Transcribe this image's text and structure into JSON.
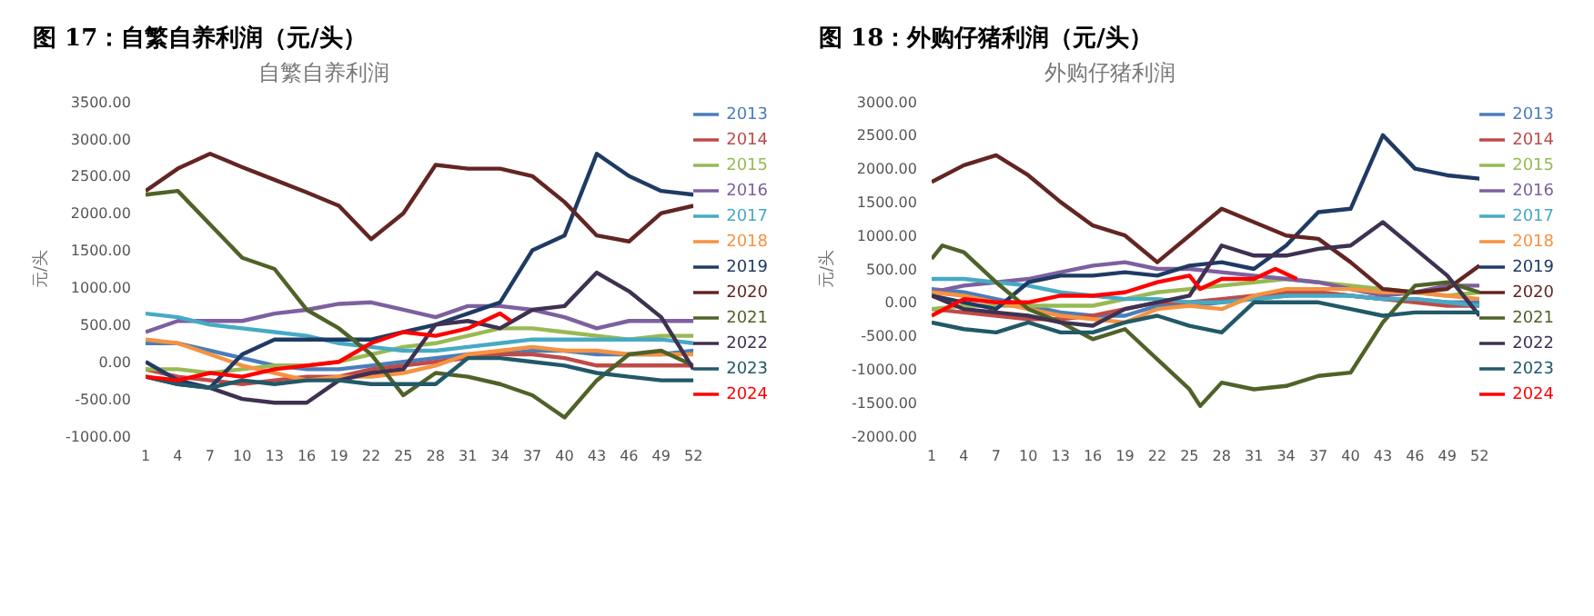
{
  "chart_data": [
    {
      "type": "line",
      "title": "图 17：自繁自养利润（元/头）",
      "subtitle": "自繁自养利润",
      "ylabel": "元/头",
      "legend": "right",
      "grid": false,
      "x": [
        1,
        4,
        7,
        10,
        13,
        16,
        19,
        22,
        25,
        28,
        31,
        34,
        37,
        40,
        43,
        46,
        49,
        52
      ],
      "xlim": [
        1,
        52
      ],
      "xticks": [
        1,
        4,
        7,
        10,
        13,
        16,
        19,
        22,
        25,
        28,
        31,
        34,
        37,
        40,
        43,
        46,
        49,
        52
      ],
      "ylim": [
        -1000,
        3500
      ],
      "yticks": [
        {
          "value": -1000,
          "label": "-1000.00"
        },
        {
          "value": -500,
          "label": "-500.00"
        },
        {
          "value": 0,
          "label": "0.00"
        },
        {
          "value": 500,
          "label": "500.00"
        },
        {
          "value": 1000,
          "label": "1000.00"
        },
        {
          "value": 1500,
          "label": "1500.00"
        },
        {
          "value": 2000,
          "label": "2000.00"
        },
        {
          "value": 2500,
          "label": "2500.00"
        },
        {
          "value": 3000,
          "label": "3000.00"
        },
        {
          "value": 3500,
          "label": "3500.00"
        }
      ],
      "series": [
        {
          "name": "2013",
          "color": "#4a7ebb",
          "values": [
            250,
            250,
            150,
            50,
            -50,
            -100,
            -100,
            -50,
            0,
            50,
            100,
            100,
            150,
            150,
            100,
            100,
            100,
            150
          ]
        },
        {
          "name": "2014",
          "color": "#be4b48",
          "values": [
            -100,
            -200,
            -250,
            -300,
            -250,
            -200,
            -200,
            -100,
            -50,
            0,
            50,
            100,
            100,
            50,
            -50,
            -50,
            -50,
            -50
          ]
        },
        {
          "name": "2015",
          "color": "#98b954",
          "values": [
            -100,
            -100,
            -150,
            -100,
            -50,
            -50,
            0,
            100,
            200,
            250,
            350,
            450,
            450,
            400,
            350,
            300,
            350,
            350
          ]
        },
        {
          "name": "2016",
          "color": "#7d60a0",
          "values": [
            400,
            550,
            550,
            550,
            650,
            700,
            780,
            800,
            700,
            600,
            750,
            750,
            700,
            600,
            450,
            550,
            550,
            550
          ]
        },
        {
          "name": "2017",
          "color": "#46aac5",
          "values": [
            650,
            600,
            500,
            450,
            400,
            350,
            250,
            200,
            150,
            150,
            200,
            250,
            300,
            300,
            300,
            300,
            300,
            250
          ]
        },
        {
          "name": "2018",
          "color": "#f69240",
          "values": [
            300,
            250,
            100,
            -50,
            -150,
            -250,
            -200,
            -200,
            -150,
            -50,
            100,
            150,
            200,
            150,
            150,
            100,
            100,
            100
          ]
        },
        {
          "name": "2019",
          "color": "#1f3b64",
          "values": [
            0,
            -250,
            -350,
            100,
            300,
            300,
            300,
            300,
            400,
            500,
            650,
            800,
            1500,
            1700,
            2800,
            2500,
            2300,
            2250
          ]
        },
        {
          "name": "2020",
          "color": "#632523",
          "values": [
            2300,
            2600,
            2800,
            2620,
            2450,
            2280,
            2100,
            1650,
            2000,
            2650,
            2600,
            2600,
            2500,
            2150,
            1700,
            1620,
            2000,
            2100
          ]
        },
        {
          "name": "2021",
          "color": "#4f6228",
          "values": [
            2250,
            2300,
            1850,
            1400,
            1250,
            700,
            450,
            100,
            -450,
            -150,
            -200,
            -300,
            -450,
            -750,
            -250,
            100,
            150,
            -50
          ]
        },
        {
          "name": "2022",
          "color": "#3f3151",
          "values": [
            -200,
            -300,
            -350,
            -500,
            -550,
            -550,
            -250,
            -150,
            -100,
            500,
            550,
            450,
            700,
            750,
            1200,
            950,
            600,
            -100
          ]
        },
        {
          "name": "2023",
          "color": "#215968",
          "values": [
            -200,
            -300,
            -350,
            -250,
            -300,
            -250,
            -250,
            -300,
            -300,
            -300,
            50,
            50,
            0,
            -50,
            -150,
            -200,
            -250,
            -250
          ]
        },
        {
          "name": "2024",
          "color": "#ff0000",
          "x": [
            1,
            4,
            7,
            10,
            13,
            16,
            19,
            22,
            25,
            28,
            31,
            34,
            35
          ],
          "values": [
            -200,
            -250,
            -150,
            -200,
            -100,
            -50,
            0,
            250,
            400,
            350,
            450,
            650,
            550
          ]
        }
      ]
    },
    {
      "type": "line",
      "title": "图 18：外购仔猪利润（元/头）",
      "subtitle": "外购仔猪利润",
      "ylabel": "元/头",
      "legend": "right",
      "grid": false,
      "x": [
        1,
        4,
        7,
        10,
        13,
        16,
        19,
        22,
        25,
        28,
        31,
        34,
        37,
        40,
        43,
        46,
        49,
        52
      ],
      "xlim": [
        1,
        52
      ],
      "xticks": [
        1,
        4,
        7,
        10,
        13,
        16,
        19,
        22,
        25,
        28,
        31,
        34,
        37,
        40,
        43,
        46,
        49,
        52
      ],
      "ylim": [
        -2000,
        3000
      ],
      "yticks": [
        {
          "value": -2000,
          "label": "-2000.00"
        },
        {
          "value": -1500,
          "label": "-1500.00"
        },
        {
          "value": -1000,
          "label": "-1000.00"
        },
        {
          "value": -500,
          "label": "-500.00"
        },
        {
          "value": 0,
          "label": "0.00"
        },
        {
          "value": 500,
          "label": "500.00"
        },
        {
          "value": 1000,
          "label": "1000.00"
        },
        {
          "value": 1500,
          "label": "1500.00"
        },
        {
          "value": 2000,
          "label": "2000.00"
        },
        {
          "value": 2500,
          "label": "2500.00"
        },
        {
          "value": 3000,
          "label": "3000.00"
        }
      ],
      "series": [
        {
          "name": "2013",
          "color": "#4a7ebb",
          "values": [
            200,
            150,
            50,
            -50,
            -150,
            -200,
            -200,
            -50,
            -50,
            0,
            50,
            100,
            150,
            100,
            50,
            50,
            0,
            0
          ]
        },
        {
          "name": "2014",
          "color": "#be4b48",
          "values": [
            -100,
            -150,
            -200,
            -250,
            -250,
            -200,
            -100,
            0,
            0,
            50,
            100,
            150,
            150,
            100,
            50,
            0,
            -50,
            -50
          ]
        },
        {
          "name": "2015",
          "color": "#98b954",
          "values": [
            -100,
            -50,
            -50,
            -50,
            -50,
            -50,
            50,
            150,
            200,
            250,
            300,
            350,
            300,
            250,
            200,
            150,
            100,
            150
          ]
        },
        {
          "name": "2016",
          "color": "#7d60a0",
          "values": [
            150,
            250,
            300,
            350,
            450,
            550,
            600,
            500,
            500,
            450,
            400,
            350,
            300,
            200,
            100,
            150,
            250,
            250
          ]
        },
        {
          "name": "2017",
          "color": "#46aac5",
          "values": [
            350,
            350,
            300,
            250,
            150,
            100,
            50,
            50,
            0,
            0,
            50,
            100,
            100,
            100,
            50,
            50,
            0,
            -50
          ]
        },
        {
          "name": "2018",
          "color": "#f69240",
          "values": [
            150,
            100,
            0,
            -100,
            -200,
            -250,
            -300,
            -100,
            -50,
            -100,
            100,
            200,
            200,
            200,
            150,
            150,
            100,
            50
          ]
        },
        {
          "name": "2019",
          "color": "#1f3b64",
          "values": [
            100,
            0,
            -100,
            300,
            400,
            400,
            450,
            400,
            550,
            600,
            500,
            850,
            1350,
            1400,
            2500,
            2000,
            1900,
            1850
          ]
        },
        {
          "name": "2020",
          "color": "#632523",
          "values": [
            1800,
            2050,
            2200,
            1900,
            1500,
            1150,
            1000,
            600,
            1000,
            1400,
            1200,
            1000,
            950,
            600,
            200,
            150,
            200,
            550
          ]
        },
        {
          "name": "2021",
          "color": "#4f6228",
          "x": [
            1,
            2,
            4,
            7,
            10,
            13,
            16,
            19,
            22,
            25,
            26,
            28,
            31,
            34,
            37,
            40,
            43,
            46,
            49,
            52
          ],
          "values": [
            650,
            850,
            750,
            300,
            -100,
            -300,
            -550,
            -400,
            -850,
            -1300,
            -1550,
            -1200,
            -1300,
            -1250,
            -1100,
            -1050,
            -300,
            250,
            300,
            150
          ]
        },
        {
          "name": "2022",
          "color": "#3f3151",
          "values": [
            100,
            -100,
            -150,
            -200,
            -300,
            -350,
            -100,
            0,
            100,
            850,
            700,
            700,
            800,
            850,
            1200,
            800,
            400,
            -200
          ]
        },
        {
          "name": "2023",
          "color": "#215968",
          "values": [
            -300,
            -400,
            -450,
            -300,
            -450,
            -450,
            -300,
            -200,
            -350,
            -450,
            0,
            0,
            0,
            -100,
            -200,
            -150,
            -150,
            -150
          ]
        },
        {
          "name": "2024",
          "color": "#ff0000",
          "x": [
            1,
            4,
            7,
            10,
            13,
            16,
            19,
            22,
            25,
            26,
            28,
            31,
            33,
            35
          ],
          "values": [
            -200,
            50,
            0,
            0,
            100,
            100,
            150,
            300,
            400,
            200,
            350,
            350,
            500,
            350
          ]
        }
      ]
    }
  ]
}
